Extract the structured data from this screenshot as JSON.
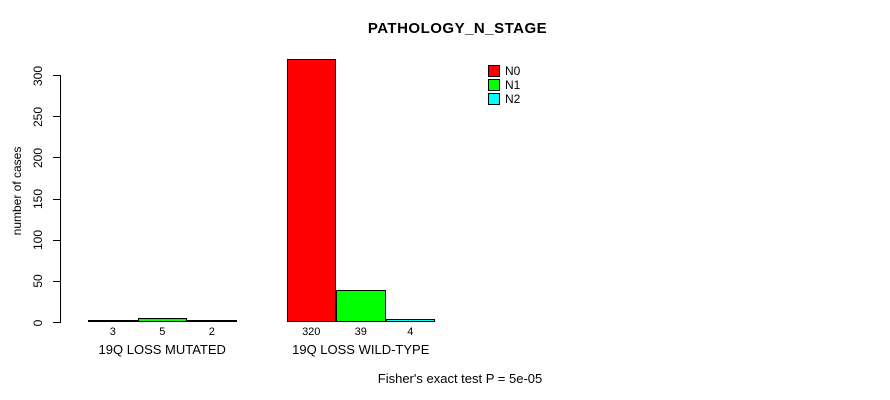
{
  "chart_data": {
    "type": "bar",
    "title": "PATHOLOGY_N_STAGE",
    "ylabel": "number of cases",
    "xlabel": "",
    "ylim": [
      0,
      300
    ],
    "yticks": [
      0,
      50,
      100,
      150,
      200,
      250,
      300
    ],
    "grid": false,
    "legend_position": "top-right",
    "categories": [
      "19Q LOSS MUTATED",
      "19Q LOSS WILD-TYPE"
    ],
    "series": [
      {
        "name": "N0",
        "color": "#ff0000",
        "values": [
          3,
          320
        ]
      },
      {
        "name": "N1",
        "color": "#00ff00",
        "values": [
          5,
          39
        ]
      },
      {
        "name": "N2",
        "color": "#00ffff",
        "values": [
          2,
          4
        ]
      }
    ],
    "footnote": "Fisher's exact test P = 5e-05"
  },
  "colors": {
    "axis": "#000000",
    "background": "#ffffff",
    "text": "#000000"
  }
}
